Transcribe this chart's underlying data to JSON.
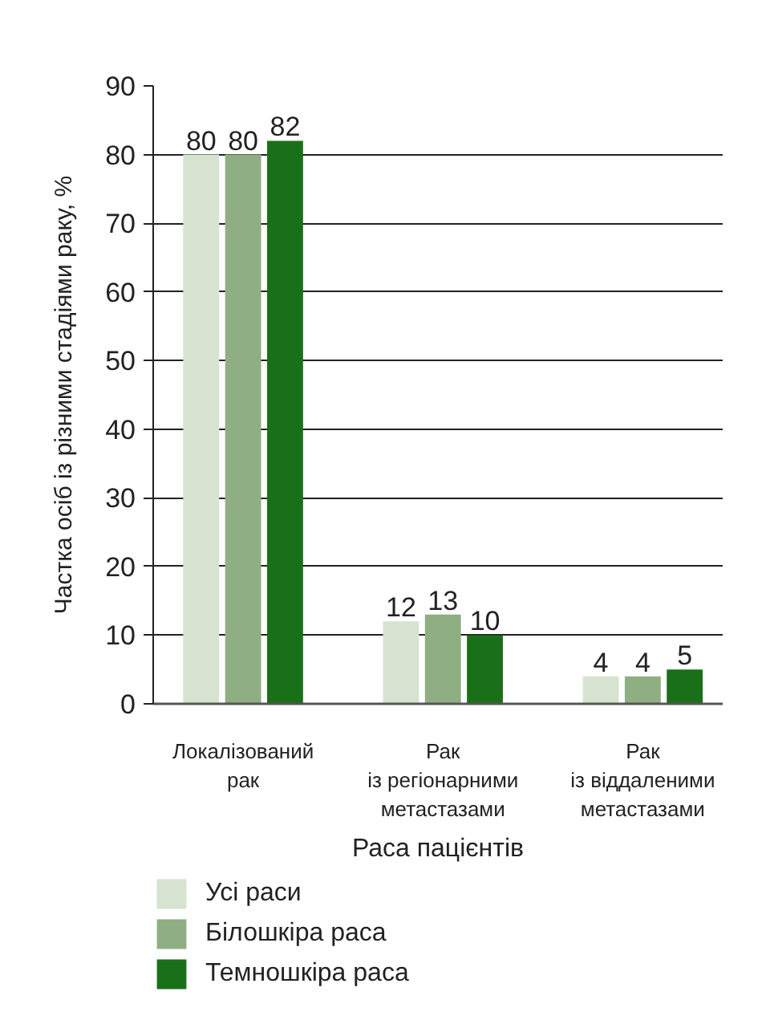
{
  "chart_data": {
    "type": "bar",
    "ylabel": "Частка осіб із різними стадіями раку, %",
    "xlabel": "Раса пацієнтів",
    "categories": [
      "Локалізований\nрак",
      "Рак\nіз регіонарними\nметастазами",
      "Рак\nіз віддаленими\nметастазами"
    ],
    "series": [
      {
        "name": "Усі раси",
        "color": "#d6e3d0",
        "values": [
          80,
          12,
          4
        ]
      },
      {
        "name": "Білошкіра раса",
        "color": "#8faf83",
        "values": [
          80,
          13,
          4
        ]
      },
      {
        "name": "Темношкіра раса",
        "color": "#1a7019",
        "values": [
          82,
          10,
          5
        ]
      }
    ],
    "ylim": [
      0,
      90
    ],
    "yticks": [
      0,
      10,
      20,
      30,
      40,
      50,
      60,
      70,
      80,
      90
    ],
    "grid": "y",
    "legend": "bottom left",
    "data_labels": true
  }
}
